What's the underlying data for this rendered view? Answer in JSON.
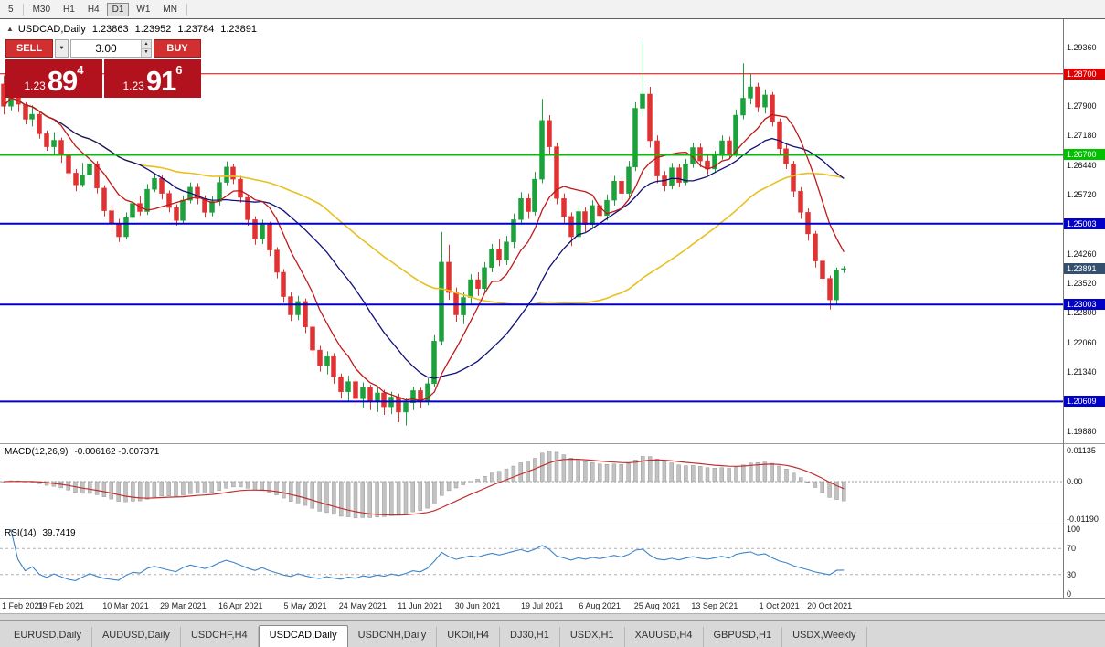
{
  "icons": {
    "chevron_down": "▼",
    "spinner_up": "▲",
    "spinner_down": "▼"
  },
  "toolbar": {
    "timeframes": [
      {
        "label": "5",
        "active": false
      },
      {
        "label": "M30",
        "active": false
      },
      {
        "label": "H1",
        "active": false
      },
      {
        "label": "H4",
        "active": false
      },
      {
        "label": "D1",
        "active": true
      },
      {
        "label": "W1",
        "active": false
      },
      {
        "label": "MN",
        "active": false
      }
    ]
  },
  "chart_header": {
    "collapse_icon": "▲",
    "symbol": "USDCAD,Daily",
    "open": "1.23863",
    "high": "1.23952",
    "low": "1.23784",
    "close": "1.23891"
  },
  "trade_panel": {
    "sell_label": "SELL",
    "buy_label": "BUY",
    "volume": "3.00",
    "bid_prefix": "1.23",
    "bid_big": "89",
    "bid_sup": "4",
    "ask_prefix": "1.23",
    "ask_big": "91",
    "ask_sup": "6"
  },
  "indicators": {
    "macd": {
      "name": "MACD(12,26,9)",
      "values": "-0.006162 -0.007371",
      "axis_top": "0.01135",
      "axis_zero": "0.00",
      "axis_bottom": "-0.01190"
    },
    "rsi": {
      "name": "RSI(14)",
      "value": "39.7419",
      "axis": [
        100,
        70,
        30,
        0
      ]
    }
  },
  "tabs": [
    {
      "label": "EURUSD,Daily",
      "active": false
    },
    {
      "label": "AUDUSD,Daily",
      "active": false
    },
    {
      "label": "USDCHF,H4",
      "active": false
    },
    {
      "label": "USDCAD,Daily",
      "active": true
    },
    {
      "label": "USDCNH,Daily",
      "active": false
    },
    {
      "label": "UKOil,H4",
      "active": false
    },
    {
      "label": "DJ30,H1",
      "active": false
    },
    {
      "label": "USDX,H1",
      "active": false
    },
    {
      "label": "XAUUSD,H4",
      "active": false
    },
    {
      "label": "GBPUSD,H1",
      "active": false
    },
    {
      "label": "USDX,Weekly",
      "active": false
    }
  ],
  "chart_data": {
    "type": "candlestick",
    "symbol": "USDCAD",
    "timeframe": "Daily",
    "ylim": [
      1.1958,
      1.3005
    ],
    "right_gap_slots": 30,
    "up_color": "#1da13c",
    "down_color": "#e03232",
    "price_ticks": [
      1.2936,
      1.279,
      1.2718,
      1.2644,
      1.2572,
      1.2426,
      1.2352,
      1.228,
      1.2206,
      1.2134,
      1.1988
    ],
    "levels": [
      {
        "value": 1.287,
        "color": "#e00000",
        "width": 1
      },
      {
        "value": 1.267,
        "color": "#00c000",
        "width": 2
      },
      {
        "value": 1.25003,
        "color": "#0000c8",
        "width": 2
      },
      {
        "value": 1.23003,
        "color": "#0000c8",
        "width": 2
      },
      {
        "value": 1.20609,
        "color": "#0000c8",
        "width": 2
      }
    ],
    "current_price": {
      "value": 1.23891,
      "bg": "#35506e"
    },
    "moving_averages": [
      {
        "period": 45,
        "color": "#e8c020",
        "width": 1.6
      },
      {
        "period": 20,
        "color": "#10107a",
        "width": 1.3
      },
      {
        "period": 8,
        "color": "#c01818",
        "width": 1.3
      }
    ],
    "macd": {
      "fast": 12,
      "slow": 26,
      "signal": 9,
      "histogram_color": "#c2c2c2",
      "signal_color": "#c03030"
    },
    "rsi": {
      "period": 14,
      "color": "#3d85c8",
      "levels": [
        70,
        30
      ]
    },
    "x_labels": [
      {
        "label": "1 Feb 2021",
        "index": 0
      },
      {
        "label": "19 Feb 2021",
        "index": 8
      },
      {
        "label": "10 Mar 2021",
        "index": 17
      },
      {
        "label": "29 Mar 2021",
        "index": 25
      },
      {
        "label": "16 Apr 2021",
        "index": 33
      },
      {
        "label": "5 May 2021",
        "index": 42
      },
      {
        "label": "24 May 2021",
        "index": 50
      },
      {
        "label": "11 Jun 2021",
        "index": 58
      },
      {
        "label": "30 Jun 2021",
        "index": 66
      },
      {
        "label": "19 Jul 2021",
        "index": 75
      },
      {
        "label": "6 Aug 2021",
        "index": 83
      },
      {
        "label": "25 Aug 2021",
        "index": 91
      },
      {
        "label": "13 Sep 2021",
        "index": 99
      },
      {
        "label": "1 Oct 2021",
        "index": 108
      },
      {
        "label": "20 Oct 2021",
        "index": 115
      }
    ],
    "candles": [
      [
        1.2845,
        1.2866,
        1.277,
        1.279
      ],
      [
        1.279,
        1.2838,
        1.278,
        1.283
      ],
      [
        1.283,
        1.284,
        1.2775,
        1.2795
      ],
      [
        1.2795,
        1.28,
        1.2745,
        1.2758
      ],
      [
        1.2758,
        1.2792,
        1.274,
        1.277
      ],
      [
        1.277,
        1.2775,
        1.271,
        1.2722
      ],
      [
        1.2722,
        1.273,
        1.268,
        1.269
      ],
      [
        1.269,
        1.2726,
        1.2668,
        1.2706
      ],
      [
        1.2706,
        1.2712,
        1.265,
        1.267
      ],
      [
        1.267,
        1.268,
        1.261,
        1.2625
      ],
      [
        1.2625,
        1.2635,
        1.258,
        1.2596
      ],
      [
        1.2596,
        1.265,
        1.259,
        1.262
      ],
      [
        1.262,
        1.266,
        1.2605,
        1.2648
      ],
      [
        1.2648,
        1.2655,
        1.2575,
        1.2588
      ],
      [
        1.2588,
        1.2595,
        1.2518,
        1.2532
      ],
      [
        1.2532,
        1.2545,
        1.248,
        1.25
      ],
      [
        1.25,
        1.2512,
        1.2455,
        1.2468
      ],
      [
        1.2468,
        1.2528,
        1.2462,
        1.2515
      ],
      [
        1.2515,
        1.2562,
        1.2505,
        1.255
      ],
      [
        1.255,
        1.2568,
        1.252,
        1.253
      ],
      [
        1.253,
        1.2598,
        1.2522,
        1.2585
      ],
      [
        1.2585,
        1.2625,
        1.2578,
        1.2612
      ],
      [
        1.2612,
        1.262,
        1.256,
        1.2575
      ],
      [
        1.2575,
        1.2582,
        1.2528,
        1.254
      ],
      [
        1.254,
        1.2548,
        1.2495,
        1.2508
      ],
      [
        1.2508,
        1.257,
        1.25,
        1.2558
      ],
      [
        1.2558,
        1.2602,
        1.255,
        1.259
      ],
      [
        1.259,
        1.26,
        1.2548,
        1.2562
      ],
      [
        1.2562,
        1.257,
        1.2515,
        1.2528
      ],
      [
        1.2528,
        1.2568,
        1.2518,
        1.2555
      ],
      [
        1.2555,
        1.2615,
        1.2545,
        1.2602
      ],
      [
        1.2602,
        1.2654,
        1.2595,
        1.264
      ],
      [
        1.264,
        1.2648,
        1.2598,
        1.261
      ],
      [
        1.261,
        1.2618,
        1.2552,
        1.2565
      ],
      [
        1.2565,
        1.2572,
        1.2495,
        1.251
      ],
      [
        1.251,
        1.2518,
        1.2448,
        1.2462
      ],
      [
        1.2462,
        1.251,
        1.245,
        1.2498
      ],
      [
        1.2498,
        1.2505,
        1.242,
        1.2435
      ],
      [
        1.2435,
        1.2442,
        1.2365,
        1.238
      ],
      [
        1.238,
        1.2388,
        1.2305,
        1.232
      ],
      [
        1.232,
        1.233,
        1.226,
        1.2275
      ],
      [
        1.2275,
        1.2322,
        1.2262,
        1.2308
      ],
      [
        1.2308,
        1.2315,
        1.223,
        1.2245
      ],
      [
        1.2245,
        1.2252,
        1.2172,
        1.2188
      ],
      [
        1.2188,
        1.2198,
        1.2135,
        1.215
      ],
      [
        1.215,
        1.2185,
        1.2128,
        1.2172
      ],
      [
        1.2172,
        1.218,
        1.2105,
        1.2122
      ],
      [
        1.2122,
        1.213,
        1.2068,
        1.2085
      ],
      [
        1.2085,
        1.2125,
        1.2062,
        1.211
      ],
      [
        1.211,
        1.2118,
        1.205,
        1.2068
      ],
      [
        1.2068,
        1.2108,
        1.2045,
        1.2095
      ],
      [
        1.2095,
        1.2102,
        1.204,
        1.206
      ],
      [
        1.206,
        1.2096,
        1.2035,
        1.2082
      ],
      [
        1.2082,
        1.209,
        1.2028,
        1.2048
      ],
      [
        1.2048,
        1.2085,
        1.203,
        1.2072
      ],
      [
        1.2072,
        1.208,
        1.201,
        1.2035
      ],
      [
        1.2035,
        1.207,
        1.2002,
        1.2058
      ],
      [
        1.2058,
        1.2098,
        1.204,
        1.2088
      ],
      [
        1.2088,
        1.2095,
        1.2045,
        1.2062
      ],
      [
        1.2062,
        1.2118,
        1.2052,
        1.2105
      ],
      [
        1.2105,
        1.2225,
        1.2098,
        1.221
      ],
      [
        1.221,
        1.248,
        1.22,
        1.2405
      ],
      [
        1.2405,
        1.2448,
        1.2312,
        1.233
      ],
      [
        1.233,
        1.2342,
        1.2258,
        1.2275
      ],
      [
        1.2275,
        1.233,
        1.2252,
        1.2318
      ],
      [
        1.2318,
        1.2375,
        1.23,
        1.2362
      ],
      [
        1.2362,
        1.238,
        1.2322,
        1.234
      ],
      [
        1.234,
        1.2405,
        1.233,
        1.2392
      ],
      [
        1.2392,
        1.245,
        1.238,
        1.2438
      ],
      [
        1.2438,
        1.2462,
        1.2395,
        1.241
      ],
      [
        1.241,
        1.247,
        1.2398,
        1.2455
      ],
      [
        1.2455,
        1.2525,
        1.244,
        1.251
      ],
      [
        1.251,
        1.2578,
        1.2498,
        1.2562
      ],
      [
        1.2562,
        1.2575,
        1.2512,
        1.253
      ],
      [
        1.253,
        1.2628,
        1.252,
        1.261
      ],
      [
        1.261,
        1.2808,
        1.26,
        1.2755
      ],
      [
        1.2755,
        1.2768,
        1.2672,
        1.269
      ],
      [
        1.269,
        1.27,
        1.2548,
        1.2562
      ],
      [
        1.2562,
        1.2575,
        1.2502,
        1.2518
      ],
      [
        1.2518,
        1.2528,
        1.2445,
        1.2468
      ],
      [
        1.2468,
        1.2545,
        1.246,
        1.253
      ],
      [
        1.253,
        1.254,
        1.248,
        1.2498
      ],
      [
        1.2498,
        1.2558,
        1.2488,
        1.2545
      ],
      [
        1.2545,
        1.256,
        1.2505,
        1.252
      ],
      [
        1.252,
        1.2572,
        1.2508,
        1.2558
      ],
      [
        1.2558,
        1.2618,
        1.2545,
        1.2605
      ],
      [
        1.2605,
        1.2615,
        1.2558,
        1.2575
      ],
      [
        1.2575,
        1.2655,
        1.2565,
        1.264
      ],
      [
        1.264,
        1.28,
        1.263,
        1.2785
      ],
      [
        1.2785,
        1.2949,
        1.2765,
        1.282
      ],
      [
        1.282,
        1.2838,
        1.2688,
        1.2705
      ],
      [
        1.2705,
        1.2718,
        1.26,
        1.2618
      ],
      [
        1.2618,
        1.263,
        1.258,
        1.2595
      ],
      [
        1.2595,
        1.265,
        1.2585,
        1.2638
      ],
      [
        1.2638,
        1.2648,
        1.259,
        1.2602
      ],
      [
        1.2602,
        1.266,
        1.2595,
        1.2648
      ],
      [
        1.2648,
        1.27,
        1.2638,
        1.2688
      ],
      [
        1.2688,
        1.2698,
        1.264,
        1.2655
      ],
      [
        1.2655,
        1.2668,
        1.2622,
        1.2635
      ],
      [
        1.2635,
        1.268,
        1.2625,
        1.2668
      ],
      [
        1.2668,
        1.2718,
        1.2658,
        1.2705
      ],
      [
        1.2705,
        1.2715,
        1.266,
        1.2672
      ],
      [
        1.2672,
        1.2782,
        1.2665,
        1.2768
      ],
      [
        1.2768,
        1.2896,
        1.2758,
        1.281
      ],
      [
        1.281,
        1.287,
        1.2795,
        1.2838
      ],
      [
        1.2838,
        1.2848,
        1.2775,
        1.2788
      ],
      [
        1.2788,
        1.2832,
        1.2772,
        1.2818
      ],
      [
        1.2818,
        1.2825,
        1.274,
        1.2752
      ],
      [
        1.2752,
        1.276,
        1.2672,
        1.2685
      ],
      [
        1.2685,
        1.2695,
        1.2635,
        1.2648
      ],
      [
        1.2648,
        1.2655,
        1.2565,
        1.258
      ],
      [
        1.258,
        1.259,
        1.2512,
        1.2528
      ],
      [
        1.2528,
        1.2538,
        1.2458,
        1.2475
      ],
      [
        1.2475,
        1.2482,
        1.2392,
        1.2408
      ],
      [
        1.2408,
        1.2418,
        1.2348,
        1.2365
      ],
      [
        1.2365,
        1.2372,
        1.2288,
        1.2312
      ],
      [
        1.2312,
        1.2392,
        1.2302,
        1.2386
      ],
      [
        1.23863,
        1.23952,
        1.23784,
        1.23891
      ]
    ]
  }
}
